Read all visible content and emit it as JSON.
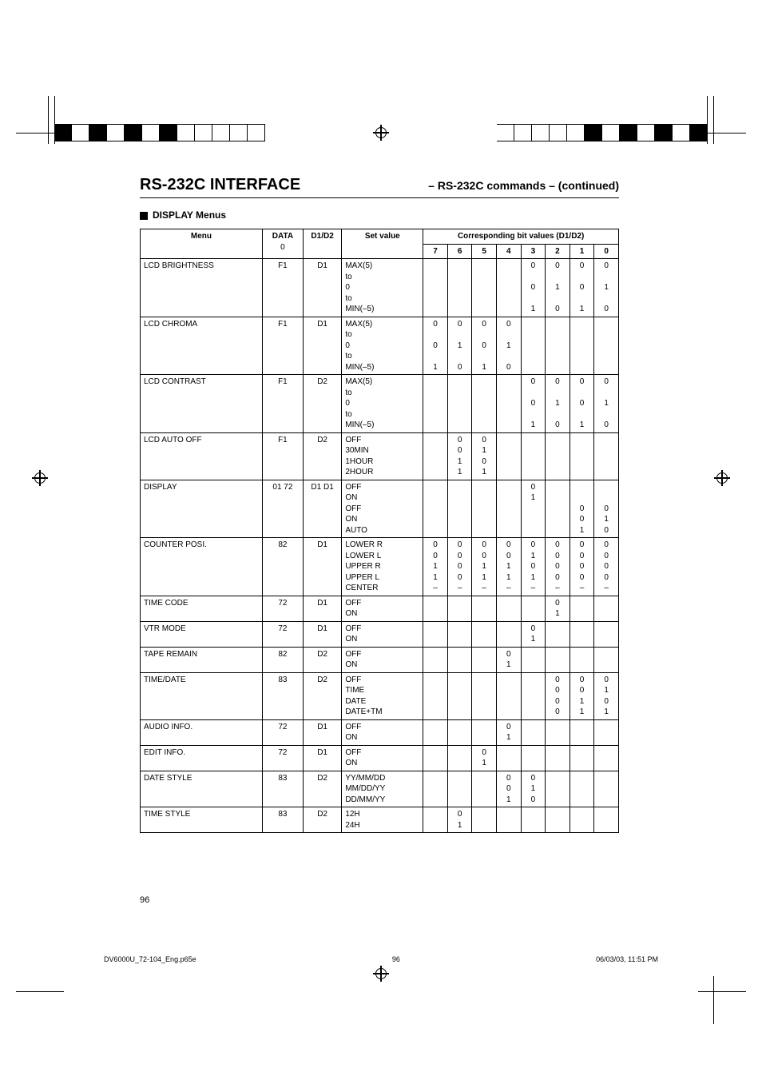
{
  "heading": {
    "main": "RS-232C INTERFACE",
    "sub": "– RS-232C commands – (continued)"
  },
  "section_label": "DISPLAY Menus",
  "table": {
    "header": {
      "menu": "Menu",
      "data_top": "DATA",
      "data_bottom": "0",
      "d1d2": "D1/D2",
      "setv": "Set value",
      "bits_title": "Corresponding bit values (D1/D2)",
      "bits": [
        "7",
        "6",
        "5",
        "4",
        "3",
        "2",
        "1",
        "0"
      ]
    },
    "rows": [
      {
        "menu": "LCD BRIGHTNESS",
        "data": "F1",
        "d1d2": "D1",
        "setv": "MAX(5)\nto\n0\nto\nMIN(–5)",
        "b7": "",
        "b6": "",
        "b5": "",
        "b4": "",
        "b3": "0\n\n0\n\n1",
        "b2": "0\n\n1\n\n0",
        "b1": "0\n\n0\n\n1",
        "b0": "0\n\n1\n\n0"
      },
      {
        "menu": "LCD CHROMA",
        "data": "F1",
        "d1d2": "D1",
        "setv": "MAX(5)\nto\n0\nto\nMIN(–5)",
        "b7": "0\n\n0\n\n1",
        "b6": "0\n\n1\n\n0",
        "b5": "0\n\n0\n\n1",
        "b4": "0\n\n1\n\n0",
        "b3": "",
        "b2": "",
        "b1": "",
        "b0": ""
      },
      {
        "menu": "LCD CONTRAST",
        "data": "F1",
        "d1d2": "D2",
        "setv": "MAX(5)\nto\n0\nto\nMIN(–5)",
        "b7": "",
        "b6": "",
        "b5": "",
        "b4": "",
        "b3": "0\n\n0\n\n1",
        "b2": "0\n\n1\n\n0",
        "b1": "0\n\n0\n\n1",
        "b0": "0\n\n1\n\n0"
      },
      {
        "menu": "LCD AUTO OFF",
        "data": "F1",
        "d1d2": "D2",
        "setv": "OFF\n30MIN\n1HOUR\n2HOUR",
        "b7": "",
        "b6": "0\n0\n1\n1",
        "b5": "0\n1\n0\n1",
        "b4": "",
        "b3": "",
        "b2": "",
        "b1": "",
        "b0": ""
      },
      {
        "menu": "DISPLAY",
        "data": "01\n\n72",
        "d1d2": "D1\n\nD1",
        "setv": "OFF\nON\nOFF\nON\nAUTO",
        "b7": "",
        "b6": "",
        "b5": "",
        "b4": "",
        "b3": "0\n1",
        "b2": "",
        "b1": "\n\n0\n0\n1",
        "b0": "\n\n0\n1\n0"
      },
      {
        "menu": "COUNTER POSI.",
        "data": "82",
        "d1d2": "D1",
        "setv": "LOWER R\nLOWER L\nUPPER R\nUPPER L\nCENTER",
        "b7": "0\n0\n1\n1\n–",
        "b6": "0\n0\n0\n0\n–",
        "b5": "0\n0\n1\n1\n–",
        "b4": "0\n0\n1\n1\n–",
        "b3": "0\n1\n0\n1\n–",
        "b2": "0\n0\n0\n0\n–",
        "b1": "0\n0\n0\n0\n–",
        "b0": "0\n0\n0\n0\n–"
      },
      {
        "menu": "TIME CODE",
        "data": "72",
        "d1d2": "D1",
        "setv": "OFF\nON",
        "b7": "",
        "b6": "",
        "b5": "",
        "b4": "",
        "b3": "",
        "b2": "0\n1",
        "b1": "",
        "b0": ""
      },
      {
        "menu": "VTR MODE",
        "data": "72",
        "d1d2": "D1",
        "setv": "OFF\nON",
        "b7": "",
        "b6": "",
        "b5": "",
        "b4": "",
        "b3": "0\n1",
        "b2": "",
        "b1": "",
        "b0": ""
      },
      {
        "menu": "TAPE REMAIN",
        "data": "82",
        "d1d2": "D2",
        "setv": "OFF\nON",
        "b7": "",
        "b6": "",
        "b5": "",
        "b4": "0\n1",
        "b3": "",
        "b2": "",
        "b1": "",
        "b0": ""
      },
      {
        "menu": "TIME/DATE",
        "data": "83",
        "d1d2": "D2",
        "setv": "OFF\nTIME\nDATE\nDATE+TM",
        "b7": "",
        "b6": "",
        "b5": "",
        "b4": "",
        "b3": "",
        "b2": "0\n0\n0\n0",
        "b1": "0\n0\n1\n1",
        "b0": "0\n1\n0\n1"
      },
      {
        "menu": "AUDIO INFO.",
        "data": "72",
        "d1d2": "D1",
        "setv": "OFF\nON",
        "b7": "",
        "b6": "",
        "b5": "",
        "b4": "0\n1",
        "b3": "",
        "b2": "",
        "b1": "",
        "b0": ""
      },
      {
        "menu": "EDIT INFO.",
        "data": "72",
        "d1d2": "D1",
        "setv": "OFF\nON",
        "b7": "",
        "b6": "",
        "b5": "0\n1",
        "b4": "",
        "b3": "",
        "b2": "",
        "b1": "",
        "b0": ""
      },
      {
        "menu": "DATE STYLE",
        "data": "83",
        "d1d2": "D2",
        "setv": "YY/MM/DD\nMM/DD/YY\nDD/MM/YY",
        "b7": "",
        "b6": "",
        "b5": "",
        "b4": "0\n0\n1",
        "b3": "0\n1\n0",
        "b2": "",
        "b1": "",
        "b0": ""
      },
      {
        "menu": "TIME STYLE",
        "data": "83",
        "d1d2": "D2",
        "setv": "12H\n24H",
        "b7": "",
        "b6": "0\n1",
        "b5": "",
        "b4": "",
        "b3": "",
        "b2": "",
        "b1": "",
        "b0": ""
      }
    ]
  },
  "page_number": "96",
  "footer": {
    "file": "DV6000U_72-104_Eng.p65e",
    "page": "96",
    "timestamp": "06/03/03, 11:51 PM"
  }
}
